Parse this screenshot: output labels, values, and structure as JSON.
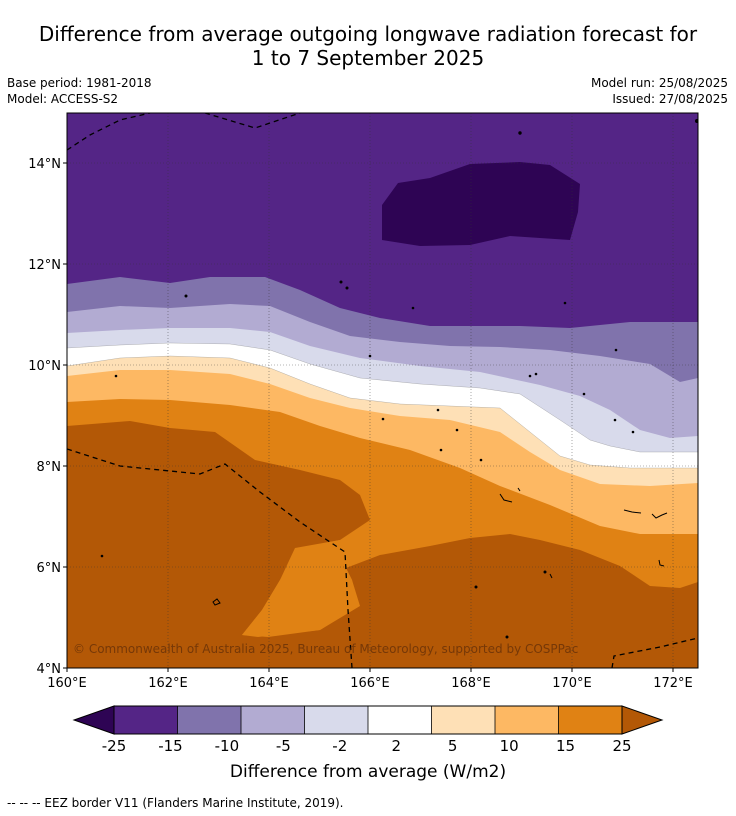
{
  "title_line1": "Difference from average outgoing longwave radiation forecast for",
  "title_line2": "1 to 7 September 2025",
  "meta": {
    "base_period": "Base period: 1981-2018",
    "model": "Model: ACCESS-S2",
    "model_run": "Model run: 25/08/2025",
    "issued": "Issued: 27/08/2025"
  },
  "map": {
    "lon_range": [
      160,
      172.5
    ],
    "lat_range": [
      4,
      15
    ],
    "lon_ticks": [
      "160°E",
      "162°E",
      "164°E",
      "166°E",
      "168°E",
      "170°E",
      "172°E"
    ],
    "lat_ticks": [
      "4°N",
      "6°N",
      "8°N",
      "10°N",
      "12°N",
      "14°N"
    ],
    "copyright": "© Commonwealth of Australia 2025, Bureau of Meteorology, supported by COSPPac"
  },
  "colorbar": {
    "labels": [
      "-25",
      "-15",
      "-10",
      "-5",
      "-2",
      "2",
      "5",
      "10",
      "15",
      "25"
    ],
    "colors": [
      "#2e0454",
      "#542586",
      "#8073ac",
      "#b2abd2",
      "#d8daeb",
      "#ffffff",
      "#fee0b6",
      "#fdb863",
      "#e08214",
      "#b35806"
    ],
    "label": "Difference from average (W/m2)"
  },
  "footer": "--  --  -- EEZ border V11 (Flanders Marine Institute, 2019)."
}
